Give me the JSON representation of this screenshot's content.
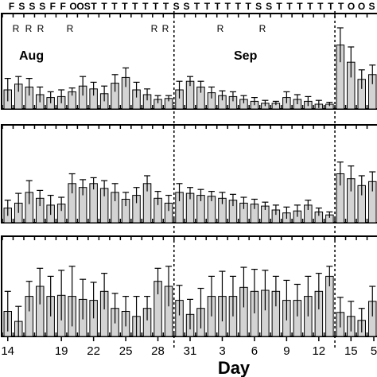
{
  "chart_data": {
    "type": "bar",
    "xlabel": "Day",
    "x_ticks": [
      "14",
      "19",
      "22",
      "25",
      "28",
      "31",
      "3",
      "6",
      "9",
      "12",
      "15",
      "5"
    ],
    "weather_codes": [
      "F",
      "S",
      "S",
      "S",
      "F",
      "F",
      "O",
      "OS",
      "T",
      "T",
      "T",
      "T",
      "T",
      "T",
      "T",
      "T",
      "S",
      "S",
      "T",
      "T",
      "T",
      "T",
      "T",
      "T",
      "S",
      "S",
      "T",
      "T",
      "T",
      "T",
      "T",
      "T",
      "T",
      "O",
      "O",
      "S"
    ],
    "r_marks": [
      "R",
      "R",
      "R",
      "R",
      "R",
      "R",
      "R",
      "R"
    ],
    "month_labels": [
      "Aug",
      "Sep"
    ],
    "bar_color": "#d3d3d3",
    "grid": false,
    "panels": [
      {
        "name": "",
        "ylim": [
          0,
          10
        ],
        "values": [
          2.0,
          2.6,
          2.3,
          1.5,
          1.2,
          1.3,
          1.8,
          2.4,
          2.1,
          1.6,
          2.7,
          3.3,
          2.0,
          1.5,
          1.0,
          1.1,
          2.0,
          2.9,
          2.3,
          1.7,
          1.4,
          1.3,
          1.0,
          0.8,
          0.6,
          0.6,
          1.2,
          1.0,
          0.8,
          0.5,
          0.5,
          6.7,
          4.9,
          3.1,
          3.6
        ],
        "errors": [
          1.2,
          0.8,
          0.9,
          0.8,
          0.6,
          0.7,
          0.4,
          1.0,
          0.7,
          0.8,
          0.9,
          1.0,
          0.8,
          0.6,
          0.4,
          0.3,
          0.9,
          0.5,
          0.6,
          0.6,
          0.5,
          0.5,
          0.4,
          0.4,
          0.3,
          0.2,
          0.6,
          0.5,
          0.5,
          0.4,
          0.2,
          1.8,
          1.6,
          1.0,
          1.0
        ]
      },
      {
        "name": "",
        "ylim": [
          0,
          10
        ],
        "values": [
          1.5,
          2.0,
          3.1,
          2.5,
          1.8,
          1.9,
          4.0,
          3.6,
          4.0,
          3.5,
          3.1,
          2.4,
          2.8,
          4.0,
          2.5,
          2.0,
          3.1,
          3.0,
          2.8,
          2.7,
          2.5,
          2.3,
          2.0,
          1.9,
          1.7,
          1.3,
          1.0,
          1.2,
          1.8,
          1.1,
          0.8,
          5.0,
          4.5,
          3.8,
          4.2
        ],
        "errors": [
          0.8,
          1.0,
          1.2,
          0.8,
          1.0,
          0.7,
          1.0,
          0.8,
          0.6,
          0.8,
          0.9,
          0.7,
          0.8,
          0.8,
          0.7,
          0.8,
          0.9,
          0.6,
          0.6,
          0.5,
          0.6,
          0.6,
          0.6,
          0.5,
          0.4,
          0.5,
          0.6,
          0.6,
          0.5,
          0.4,
          0.3,
          1.2,
          1.3,
          1.0,
          1.0
        ]
      },
      {
        "name": "",
        "ylim": [
          0,
          10
        ],
        "values": [
          2.5,
          1.5,
          4.0,
          5.0,
          4.0,
          4.1,
          4.0,
          3.7,
          3.6,
          4.5,
          2.8,
          2.5,
          2.0,
          2.8,
          5.5,
          5.0,
          3.6,
          2.2,
          2.8,
          4.0,
          4.0,
          4.0,
          4.9,
          4.5,
          4.6,
          4.5,
          3.6,
          3.6,
          4.0,
          4.5,
          6.0,
          2.4,
          2.0,
          1.6,
          3.5
        ],
        "errors": [
          2.0,
          1.5,
          1.5,
          1.8,
          2.0,
          2.5,
          3.0,
          2.0,
          1.8,
          1.8,
          1.5,
          1.5,
          2.0,
          1.2,
          1.3,
          2.0,
          1.5,
          1.5,
          2.0,
          2.0,
          2.5,
          2.0,
          2.0,
          2.2,
          2.0,
          1.5,
          2.0,
          1.6,
          2.0,
          1.8,
          1.0,
          1.5,
          1.5,
          1.2,
          1.5
        ]
      }
    ]
  }
}
